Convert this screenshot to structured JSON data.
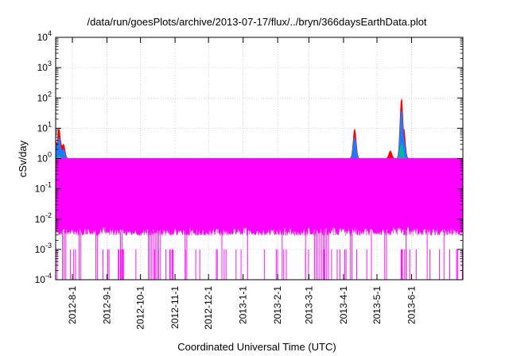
{
  "chart_data": {
    "type": "line",
    "title": "/data/run/goesPlots/archive/2013-07-17/flux/../bryn/366daysEarthData.plot",
    "xlabel": "Coordinated Universal Time (UTC)",
    "ylabel": "cSv/day",
    "yscale": "log",
    "ylim": [
      0.0001,
      10000
    ],
    "xlim": [
      "2012-07-17",
      "2013-07-17"
    ],
    "grid": true,
    "legend": "none",
    "y_ticks": [
      {
        "value": 0.0001,
        "base": "10",
        "exp": "-4"
      },
      {
        "value": 0.001,
        "base": "10",
        "exp": "-3"
      },
      {
        "value": 0.01,
        "base": "10",
        "exp": "-2"
      },
      {
        "value": 0.1,
        "base": "10",
        "exp": "-1"
      },
      {
        "value": 1,
        "base": "10",
        "exp": "0"
      },
      {
        "value": 10,
        "base": "10",
        "exp": "1"
      },
      {
        "value": 100,
        "base": "10",
        "exp": "2"
      },
      {
        "value": 1000,
        "base": "10",
        "exp": "3"
      },
      {
        "value": 10000,
        "base": "10",
        "exp": "4"
      }
    ],
    "x_ticks": [
      {
        "date": "2012-08-01",
        "label": "2012-8-1"
      },
      {
        "date": "2012-09-01",
        "label": "2012-9-1"
      },
      {
        "date": "2012-10-01",
        "label": "2012-10-1"
      },
      {
        "date": "2012-11-01",
        "label": "2012-11-1"
      },
      {
        "date": "2012-12-01",
        "label": "2012-12-1"
      },
      {
        "date": "2013-01-01",
        "label": "2013-1-1"
      },
      {
        "date": "2013-02-01",
        "label": "2013-2-1"
      },
      {
        "date": "2013-03-01",
        "label": "2013-3-1"
      },
      {
        "date": "2013-04-01",
        "label": "2013-4-1"
      },
      {
        "date": "2013-05-01",
        "label": "2013-5-1"
      },
      {
        "date": "2013-06-01",
        "label": "2013-6-1"
      }
    ],
    "series": [
      {
        "color": "#ff0000",
        "baseline": 0.075,
        "points": [
          [
            "2012-07-17",
            4
          ],
          [
            "2012-07-20",
            10
          ],
          [
            "2012-07-22",
            3
          ],
          [
            "2012-07-24",
            3
          ],
          [
            "2012-07-26",
            0.5
          ],
          [
            "2012-08-05",
            0.3
          ],
          [
            "2012-08-08",
            0.15
          ],
          [
            "2012-08-19",
            0.15
          ],
          [
            "2012-09-01",
            0.55
          ],
          [
            "2012-09-05",
            0.2
          ],
          [
            "2012-09-10",
            0.15
          ],
          [
            "2012-09-18",
            0.12
          ],
          [
            "2012-09-30",
            1.0
          ],
          [
            "2012-10-02",
            0.3
          ],
          [
            "2012-10-08",
            0.12
          ],
          [
            "2012-10-13",
            0.12
          ],
          [
            "2012-11-01",
            0.2
          ],
          [
            "2012-11-24",
            0.12
          ],
          [
            "2012-12-01",
            0.15
          ],
          [
            "2012-12-15",
            0.12
          ],
          [
            "2013-01-11",
            0.12
          ],
          [
            "2013-01-19",
            0.12
          ],
          [
            "2013-02-15",
            0.12
          ],
          [
            "2013-03-05",
            0.12
          ],
          [
            "2013-03-17",
            0.12
          ],
          [
            "2013-03-22",
            0.4
          ],
          [
            "2013-04-06",
            0.12
          ],
          [
            "2013-04-11",
            9.5
          ],
          [
            "2013-04-13",
            0.7
          ],
          [
            "2013-04-16",
            0.15
          ],
          [
            "2013-04-21",
            0.3
          ],
          [
            "2013-04-24",
            0.3
          ],
          [
            "2013-05-04",
            0.2
          ],
          [
            "2013-05-13",
            1.8
          ],
          [
            "2013-05-15",
            0.6
          ],
          [
            "2013-05-20",
            0.3
          ],
          [
            "2013-05-23",
            100
          ],
          [
            "2013-05-25",
            10
          ],
          [
            "2013-05-28",
            0.15
          ],
          [
            "2013-06-02",
            0.12
          ],
          [
            "2013-06-23",
            0.5
          ],
          [
            "2013-06-26",
            0.15
          ]
        ]
      },
      {
        "color": "#1e7bff",
        "baseline": 0.055,
        "points": [
          [
            "2012-07-17",
            3
          ],
          [
            "2012-07-20",
            5
          ],
          [
            "2012-07-22",
            2
          ],
          [
            "2012-07-24",
            2
          ],
          [
            "2012-07-26",
            0.3
          ],
          [
            "2012-08-05",
            0.2
          ],
          [
            "2012-09-01",
            0.35
          ],
          [
            "2012-09-05",
            0.12
          ],
          [
            "2012-09-30",
            0.5
          ],
          [
            "2012-10-02",
            0.2
          ],
          [
            "2012-11-01",
            0.12
          ],
          [
            "2013-03-22",
            0.2
          ],
          [
            "2013-04-11",
            5
          ],
          [
            "2013-04-13",
            0.4
          ],
          [
            "2013-04-21",
            0.2
          ],
          [
            "2013-04-24",
            0.2
          ],
          [
            "2013-05-13",
            1.0
          ],
          [
            "2013-05-15",
            0.35
          ],
          [
            "2013-05-20",
            0.2
          ],
          [
            "2013-05-23",
            40
          ],
          [
            "2013-05-25",
            4
          ],
          [
            "2013-06-23",
            0.3
          ]
        ]
      },
      {
        "color": "#00b8a0",
        "baseline": 0.045,
        "points": [
          [
            "2012-07-20",
            1.2
          ],
          [
            "2012-07-22",
            0.6
          ],
          [
            "2012-09-01",
            0.15
          ],
          [
            "2012-09-30",
            0.2
          ],
          [
            "2013-04-11",
            0.8
          ],
          [
            "2013-05-13",
            0.35
          ],
          [
            "2013-05-23",
            3
          ],
          [
            "2013-05-25",
            0.6
          ],
          [
            "2013-06-23",
            0.12
          ]
        ]
      },
      {
        "color": "#ff00ff",
        "baseline": 0.03,
        "band": [
          0.004,
          0.03
        ],
        "points": [
          [
            "2012-07-20",
            0.05
          ],
          [
            "2013-04-11",
            0.06
          ],
          [
            "2013-05-23",
            0.08
          ]
        ],
        "dropouts": [
          [
            "2012-07-23",
            "2012-07-27"
          ],
          [
            "2012-08-07",
            "2012-08-09"
          ],
          [
            "2012-08-22",
            "2012-08-24"
          ],
          [
            "2012-09-13",
            "2012-09-15"
          ],
          [
            "2012-10-08",
            "2012-10-19"
          ],
          [
            "2012-11-10",
            "2012-11-12"
          ],
          [
            "2012-12-13",
            "2012-12-14"
          ],
          [
            "2013-01-05",
            "2013-01-06"
          ],
          [
            "2013-02-05",
            "2013-02-06"
          ],
          [
            "2013-02-26",
            "2013-02-27"
          ],
          [
            "2013-03-06",
            "2013-03-20"
          ],
          [
            "2013-04-07",
            "2013-04-09"
          ],
          [
            "2013-04-26",
            "2013-04-27"
          ],
          [
            "2013-05-08",
            "2013-05-10"
          ],
          [
            "2013-05-27",
            "2013-05-28"
          ],
          [
            "2013-06-15",
            "2013-06-16"
          ],
          [
            "2013-06-30",
            "2013-07-01"
          ]
        ]
      }
    ]
  }
}
